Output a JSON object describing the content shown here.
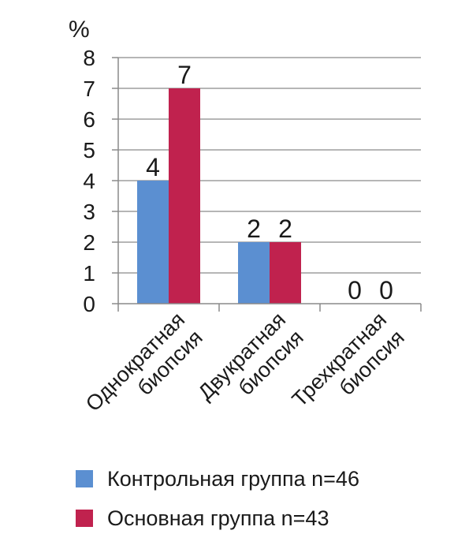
{
  "chart_data": {
    "type": "bar",
    "unit": "%",
    "categories": [
      [
        "Однократная",
        "биопсия"
      ],
      [
        "Двукратная",
        "биопсия"
      ],
      [
        "Трехкратная",
        "биопсия"
      ]
    ],
    "series": [
      {
        "name": "Контрольная группа n=46",
        "values": [
          4,
          2,
          0
        ],
        "color": "#5b8fd1"
      },
      {
        "name": "Основная группа n=43",
        "values": [
          7,
          2,
          0
        ],
        "color": "#c0224e"
      }
    ],
    "ylim": [
      0,
      8
    ],
    "yticks": [
      0,
      1,
      2,
      3,
      4,
      5,
      6,
      7,
      8
    ],
    "grid": true,
    "legend_position": "bottom"
  }
}
